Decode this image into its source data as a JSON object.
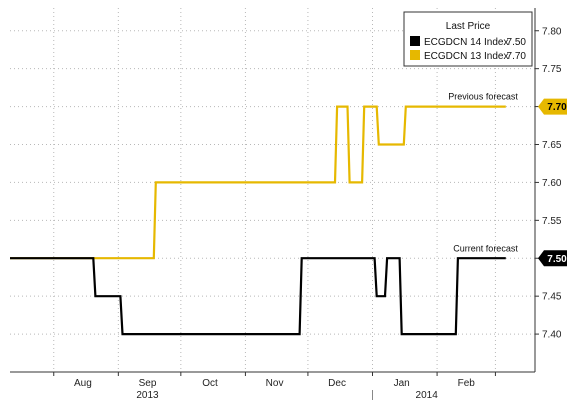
{
  "chart_data": {
    "type": "line",
    "title": "",
    "xlabel": "",
    "ylabel": "",
    "x_range": [
      "2013-07-11",
      "2014-03-20"
    ],
    "ylim": [
      7.35,
      7.83
    ],
    "y_ticks": [
      7.4,
      7.45,
      7.5,
      7.55,
      7.6,
      7.65,
      7.7,
      7.75,
      7.8
    ],
    "y_tick_labels": [
      "7.40",
      "7.45",
      "7.50",
      "7.55",
      "7.60",
      "7.65",
      "7.70",
      "7.75",
      "7.80"
    ],
    "month_ticks": [
      {
        "label": "Aug",
        "date": "2013-08-15"
      },
      {
        "label": "Sep",
        "date": "2013-09-15"
      },
      {
        "label": "Oct",
        "date": "2013-10-15"
      },
      {
        "label": "Nov",
        "date": "2013-11-15"
      },
      {
        "label": "Dec",
        "date": "2013-12-15"
      },
      {
        "label": "Jan",
        "date": "2014-01-15"
      },
      {
        "label": "Feb",
        "date": "2014-02-15"
      }
    ],
    "year_labels": [
      {
        "label": "2013",
        "date": "2013-09-15"
      },
      {
        "label": "2014",
        "date": "2014-01-27"
      }
    ],
    "grid": true,
    "legend": {
      "title": "Last Price",
      "position": "top-right",
      "entries": [
        {
          "label": "ECGDCN 14 Index",
          "value": "7.50",
          "color": "#000000"
        },
        {
          "label": "ECGDCN 13 Index",
          "value": "7.70",
          "color": "#e6b800"
        }
      ]
    },
    "series": [
      {
        "name": "ECGDCN 14 Index",
        "color": "#000000",
        "last_value_label": "7.50",
        "annotation": "Current forecast",
        "points": [
          [
            "2013-07-11",
            7.5
          ],
          [
            "2013-08-20",
            7.5
          ],
          [
            "2013-08-21",
            7.45
          ],
          [
            "2013-09-02",
            7.45
          ],
          [
            "2013-09-03",
            7.4
          ],
          [
            "2013-11-27",
            7.4
          ],
          [
            "2013-11-28",
            7.5
          ],
          [
            "2014-01-02",
            7.5
          ],
          [
            "2014-01-03",
            7.45
          ],
          [
            "2014-01-07",
            7.45
          ],
          [
            "2014-01-08",
            7.5
          ],
          [
            "2014-01-14",
            7.5
          ],
          [
            "2014-01-15",
            7.4
          ],
          [
            "2014-02-10",
            7.4
          ],
          [
            "2014-02-11",
            7.5
          ],
          [
            "2014-03-06",
            7.5
          ]
        ]
      },
      {
        "name": "ECGDCN 13 Index",
        "color": "#e6b800",
        "last_value_label": "7.70",
        "annotation": "Previous forecast",
        "points": [
          [
            "2013-07-11",
            7.5
          ],
          [
            "2013-09-18",
            7.5
          ],
          [
            "2013-09-19",
            7.6
          ],
          [
            "2013-12-14",
            7.6
          ],
          [
            "2013-12-15",
            7.7
          ],
          [
            "2013-12-20",
            7.7
          ],
          [
            "2013-12-21",
            7.6
          ],
          [
            "2013-12-27",
            7.6
          ],
          [
            "2013-12-28",
            7.7
          ],
          [
            "2014-01-03",
            7.7
          ],
          [
            "2014-01-04",
            7.65
          ],
          [
            "2014-01-16",
            7.65
          ],
          [
            "2014-01-17",
            7.7
          ],
          [
            "2014-03-06",
            7.7
          ]
        ]
      }
    ]
  }
}
